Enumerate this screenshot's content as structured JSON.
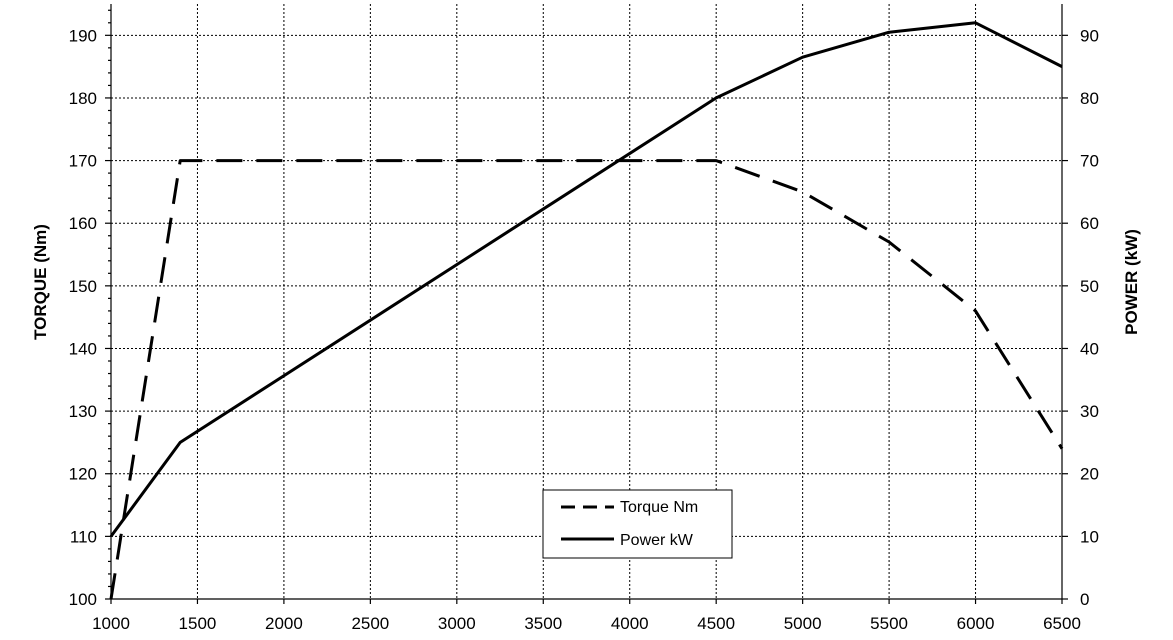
{
  "chart_data": {
    "type": "line",
    "xlabel": "",
    "ylabel": "TORQUE (Nm)",
    "y2label": "POWER (kW)",
    "xlim": [
      1000,
      6500
    ],
    "ylim": [
      100,
      195
    ],
    "y2lim": [
      0,
      95
    ],
    "x_ticks": [
      "1000",
      "1500",
      "2000",
      "2500",
      "3000",
      "3500",
      "4000",
      "4500",
      "5000",
      "5500",
      "6000",
      "6500"
    ],
    "y_ticks": [
      "100",
      "110",
      "120",
      "130",
      "140",
      "150",
      "160",
      "170",
      "180",
      "190"
    ],
    "y2_ticks": [
      "0",
      "10",
      "20",
      "30",
      "40",
      "50",
      "60",
      "70",
      "80",
      "90"
    ],
    "grid": true,
    "legend_position": "bottom-center",
    "series": [
      {
        "name": "Torque Nm",
        "axis": "left",
        "style": "dashed",
        "color": "#000000",
        "x": [
          1000,
          1400,
          4500,
          5000,
          5500,
          6000,
          6500
        ],
        "values": [
          100,
          170,
          170,
          165,
          157,
          146,
          124
        ]
      },
      {
        "name": "Power kW",
        "axis": "right",
        "style": "solid",
        "color": "#000000",
        "x": [
          1000,
          1400,
          4500,
          5000,
          5500,
          6000,
          6500
        ],
        "values": [
          10,
          25,
          80,
          86.5,
          90.5,
          92,
          85
        ]
      }
    ]
  }
}
